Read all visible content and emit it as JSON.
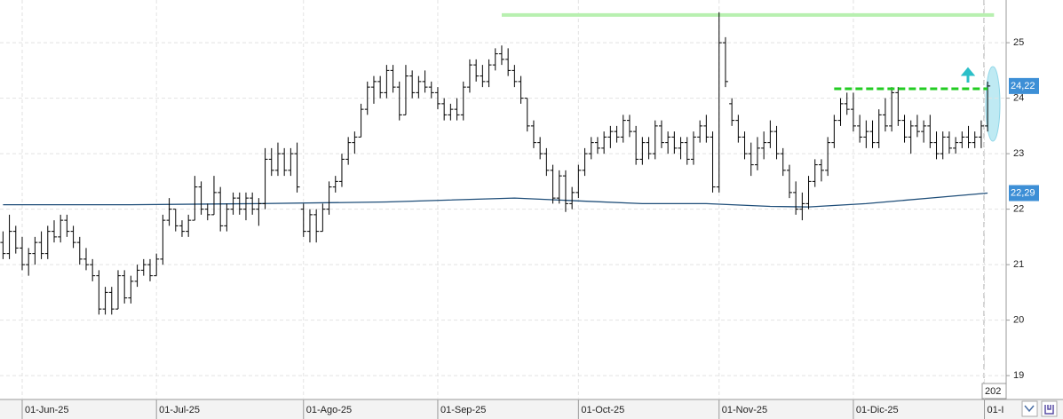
{
  "chart_data": {
    "type": "ohlc",
    "ylim": [
      18.57,
      25.77
    ],
    "yticks": [
      19,
      20,
      21,
      22,
      23,
      24,
      25
    ],
    "xlim": [
      -0.47,
      156.9
    ],
    "xticks": [
      {
        "value": 3,
        "label": "01-Jun-25"
      },
      {
        "value": 24,
        "label": "01-Jul-25"
      },
      {
        "value": 47,
        "label": "01-Ago-25"
      },
      {
        "value": 68,
        "label": "01-Sep-25"
      },
      {
        "value": 90,
        "label": "01-Oct-25"
      },
      {
        "value": 112,
        "label": "01-Nov-25"
      },
      {
        "value": 133,
        "label": "01-Dic-25"
      },
      {
        "value": 153.5,
        "label": "01-I"
      }
    ],
    "grid": true,
    "color": "#000000",
    "ohlc": [
      [
        21.4,
        21.6,
        21.1,
        21.2
      ],
      [
        21.2,
        21.9,
        21.1,
        21.6
      ],
      [
        21.6,
        21.7,
        21.2,
        21.3
      ],
      [
        21.3,
        21.5,
        20.9,
        21.0
      ],
      [
        21.0,
        21.3,
        20.8,
        21.2
      ],
      [
        21.2,
        21.5,
        21.0,
        21.4
      ],
      [
        21.4,
        21.6,
        21.1,
        21.2
      ],
      [
        21.2,
        21.7,
        21.1,
        21.6
      ],
      [
        21.6,
        21.8,
        21.4,
        21.5
      ],
      [
        21.5,
        21.9,
        21.4,
        21.8
      ],
      [
        21.8,
        21.9,
        21.5,
        21.6
      ],
      [
        21.6,
        21.7,
        21.3,
        21.4
      ],
      [
        21.4,
        21.5,
        21.0,
        21.1
      ],
      [
        21.1,
        21.3,
        20.9,
        21.0
      ],
      [
        21.0,
        21.1,
        20.7,
        20.8
      ],
      [
        20.8,
        20.9,
        20.1,
        20.2
      ],
      [
        20.2,
        20.6,
        20.1,
        20.5
      ],
      [
        20.5,
        20.6,
        20.1,
        20.2
      ],
      [
        20.2,
        20.9,
        20.2,
        20.8
      ],
      [
        20.8,
        20.9,
        20.3,
        20.4
      ],
      [
        20.4,
        20.8,
        20.3,
        20.7
      ],
      [
        20.7,
        21.0,
        20.6,
        20.9
      ],
      [
        20.9,
        21.1,
        20.8,
        21.0
      ],
      [
        21.0,
        21.1,
        20.7,
        20.8
      ],
      [
        20.8,
        21.2,
        20.8,
        21.1
      ],
      [
        21.1,
        21.9,
        21.0,
        21.8
      ],
      [
        21.8,
        22.2,
        21.7,
        22.0
      ],
      [
        22.0,
        22.0,
        21.6,
        21.7
      ],
      [
        21.7,
        21.8,
        21.5,
        21.6
      ],
      [
        21.6,
        21.9,
        21.5,
        21.8
      ],
      [
        21.8,
        22.6,
        21.8,
        22.4
      ],
      [
        22.4,
        22.5,
        21.9,
        22.0
      ],
      [
        22.0,
        22.1,
        21.8,
        21.9
      ],
      [
        21.9,
        22.6,
        21.9,
        22.3
      ],
      [
        22.3,
        22.4,
        21.6,
        21.7
      ],
      [
        21.7,
        22.1,
        21.6,
        22.0
      ],
      [
        22.0,
        22.3,
        21.9,
        22.2
      ],
      [
        22.2,
        22.3,
        21.9,
        22.0
      ],
      [
        22.0,
        22.3,
        21.8,
        22.2
      ],
      [
        22.2,
        22.3,
        21.9,
        22.0
      ],
      [
        22.0,
        22.2,
        21.7,
        22.1
      ],
      [
        22.1,
        23.1,
        22.0,
        22.9
      ],
      [
        22.9,
        23.1,
        22.6,
        22.7
      ],
      [
        22.7,
        23.2,
        22.6,
        23.0
      ],
      [
        23.0,
        23.1,
        22.6,
        22.7
      ],
      [
        22.7,
        23.1,
        22.6,
        23.0
      ],
      [
        23.0,
        23.2,
        22.3,
        22.4
      ],
      [
        22.0,
        22.1,
        21.5,
        21.6
      ],
      [
        21.6,
        22.0,
        21.4,
        21.9
      ],
      [
        21.9,
        22.0,
        21.4,
        21.6
      ],
      [
        21.6,
        22.1,
        21.6,
        22.0
      ],
      [
        22.0,
        22.5,
        21.9,
        22.4
      ],
      [
        22.4,
        22.6,
        22.3,
        22.5
      ],
      [
        22.5,
        23.0,
        22.4,
        22.9
      ],
      [
        22.9,
        23.3,
        22.8,
        23.2
      ],
      [
        23.2,
        23.4,
        23.0,
        23.3
      ],
      [
        23.3,
        23.9,
        23.3,
        23.8
      ],
      [
        23.8,
        24.3,
        23.7,
        24.2
      ],
      [
        24.2,
        24.4,
        23.9,
        24.3
      ],
      [
        24.3,
        24.4,
        24.0,
        24.1
      ],
      [
        24.1,
        24.6,
        24.0,
        24.5
      ],
      [
        24.5,
        24.6,
        24.1,
        24.2
      ],
      [
        24.2,
        24.3,
        23.6,
        23.7
      ],
      [
        23.7,
        24.6,
        23.7,
        24.4
      ],
      [
        24.4,
        24.5,
        24.0,
        24.1
      ],
      [
        24.1,
        24.4,
        24.0,
        24.3
      ],
      [
        24.3,
        24.5,
        24.1,
        24.2
      ],
      [
        24.2,
        24.3,
        24.0,
        24.1
      ],
      [
        24.1,
        24.2,
        23.8,
        23.9
      ],
      [
        23.9,
        24.0,
        23.6,
        23.7
      ],
      [
        23.7,
        23.9,
        23.6,
        23.8
      ],
      [
        23.8,
        24.0,
        23.6,
        23.7
      ],
      [
        23.7,
        24.3,
        23.6,
        24.2
      ],
      [
        24.2,
        24.7,
        24.1,
        24.6
      ],
      [
        24.6,
        24.7,
        24.3,
        24.4
      ],
      [
        24.4,
        24.6,
        24.2,
        24.3
      ],
      [
        24.3,
        24.7,
        24.2,
        24.6
      ],
      [
        24.6,
        24.9,
        24.5,
        24.8
      ],
      [
        24.8,
        24.95,
        24.6,
        24.7
      ],
      [
        24.7,
        24.9,
        24.4,
        24.5
      ],
      [
        24.5,
        24.6,
        24.2,
        24.3
      ],
      [
        24.3,
        24.4,
        23.9,
        24.0
      ],
      [
        24.0,
        24.0,
        23.4,
        23.5
      ],
      [
        23.5,
        23.6,
        23.1,
        23.2
      ],
      [
        23.2,
        23.3,
        22.9,
        23.0
      ],
      [
        23.0,
        23.1,
        22.6,
        22.7
      ],
      [
        22.7,
        22.8,
        22.1,
        22.2
      ],
      [
        22.2,
        22.7,
        22.1,
        22.6
      ],
      [
        22.6,
        22.7,
        21.95,
        22.1
      ],
      [
        22.1,
        22.4,
        22.0,
        22.3
      ],
      [
        22.3,
        22.8,
        22.2,
        22.7
      ],
      [
        22.7,
        23.1,
        22.6,
        23.0
      ],
      [
        23.0,
        23.3,
        22.9,
        23.2
      ],
      [
        23.2,
        23.3,
        23.0,
        23.1
      ],
      [
        23.1,
        23.4,
        23.0,
        23.3
      ],
      [
        23.3,
        23.5,
        23.1,
        23.4
      ],
      [
        23.4,
        23.5,
        23.2,
        23.3
      ],
      [
        23.3,
        23.7,
        23.2,
        23.6
      ],
      [
        23.6,
        23.7,
        23.3,
        23.4
      ],
      [
        23.4,
        23.5,
        22.8,
        22.9
      ],
      [
        22.9,
        23.3,
        22.8,
        23.2
      ],
      [
        23.2,
        23.3,
        22.9,
        23.0
      ],
      [
        23.0,
        23.6,
        22.9,
        23.5
      ],
      [
        23.5,
        23.6,
        23.1,
        23.2
      ],
      [
        23.2,
        23.4,
        23.0,
        23.3
      ],
      [
        23.3,
        23.4,
        23.0,
        23.1
      ],
      [
        23.1,
        23.3,
        22.9,
        23.2
      ],
      [
        23.2,
        23.3,
        22.8,
        22.9
      ],
      [
        22.9,
        23.4,
        22.8,
        23.3
      ],
      [
        23.3,
        23.6,
        23.2,
        23.5
      ],
      [
        23.5,
        23.7,
        23.2,
        23.3
      ],
      [
        23.3,
        23.4,
        22.3,
        22.4
      ],
      [
        22.4,
        25.55,
        22.3,
        25.0
      ],
      [
        25.0,
        25.1,
        24.2,
        24.3
      ],
      [
        23.9,
        24.0,
        23.5,
        23.6
      ],
      [
        23.6,
        23.7,
        23.2,
        23.3
      ],
      [
        23.3,
        23.4,
        22.9,
        23.0
      ],
      [
        23.0,
        23.2,
        22.6,
        22.8
      ],
      [
        22.8,
        23.3,
        22.7,
        23.1
      ],
      [
        23.1,
        23.4,
        22.9,
        23.2
      ],
      [
        23.2,
        23.6,
        23.1,
        23.4
      ],
      [
        23.4,
        23.5,
        22.9,
        23.0
      ],
      [
        23.0,
        23.1,
        22.6,
        22.7
      ],
      [
        22.7,
        22.8,
        22.2,
        22.3
      ],
      [
        22.3,
        22.5,
        21.9,
        22.0
      ],
      [
        22.0,
        22.3,
        21.8,
        22.1
      ],
      [
        22.1,
        22.6,
        22.0,
        22.5
      ],
      [
        22.5,
        22.9,
        22.4,
        22.8
      ],
      [
        22.8,
        22.9,
        22.5,
        22.7
      ],
      [
        22.7,
        23.3,
        22.6,
        23.2
      ],
      [
        23.2,
        23.7,
        23.1,
        23.6
      ],
      [
        23.6,
        24.0,
        23.5,
        23.9
      ],
      [
        23.9,
        24.1,
        23.7,
        23.8
      ],
      [
        23.8,
        24.1,
        23.4,
        23.5
      ],
      [
        23.5,
        23.7,
        23.2,
        23.3
      ],
      [
        23.3,
        23.6,
        23.1,
        23.4
      ],
      [
        23.4,
        23.6,
        23.1,
        23.2
      ],
      [
        23.2,
        23.8,
        23.1,
        23.7
      ],
      [
        23.7,
        24.0,
        23.4,
        23.5
      ],
      [
        23.5,
        24.2,
        23.4,
        24.1
      ],
      [
        24.1,
        24.2,
        23.5,
        23.6
      ],
      [
        23.6,
        23.7,
        23.2,
        23.3
      ],
      [
        23.3,
        23.6,
        23.0,
        23.5
      ],
      [
        23.5,
        23.7,
        23.3,
        23.4
      ],
      [
        23.4,
        23.6,
        23.2,
        23.5
      ],
      [
        23.5,
        23.7,
        23.1,
        23.2
      ],
      [
        23.2,
        23.4,
        22.9,
        23.0
      ],
      [
        23.0,
        23.4,
        22.9,
        23.3
      ],
      [
        23.3,
        23.4,
        23.0,
        23.1
      ],
      [
        23.1,
        23.3,
        23.0,
        23.2
      ],
      [
        23.2,
        23.4,
        23.1,
        23.3
      ],
      [
        23.3,
        23.5,
        23.1,
        23.2
      ],
      [
        23.2,
        23.4,
        23.1,
        23.3
      ],
      [
        23.3,
        23.6,
        23.1,
        23.5
      ],
      [
        23.5,
        24.3,
        23.4,
        24.22
      ]
    ],
    "last_label": "24,22",
    "ma": {
      "color": "#1f4e79",
      "x": [
        0,
        20,
        40,
        60,
        80,
        90,
        100,
        110,
        120,
        126,
        135,
        145,
        154
      ],
      "values": [
        22.08,
        22.08,
        22.1,
        22.13,
        22.2,
        22.15,
        22.1,
        22.1,
        22.05,
        22.04,
        22.1,
        22.2,
        22.29
      ],
      "value_label": "22,29"
    },
    "resistance": {
      "value": 25.5,
      "x": [
        78,
        155
      ],
      "color": "#b8f0b0"
    },
    "support": {
      "value": 24.17,
      "x": [
        130,
        154
      ],
      "color": "#22cc22"
    },
    "cursor_label": "202"
  }
}
